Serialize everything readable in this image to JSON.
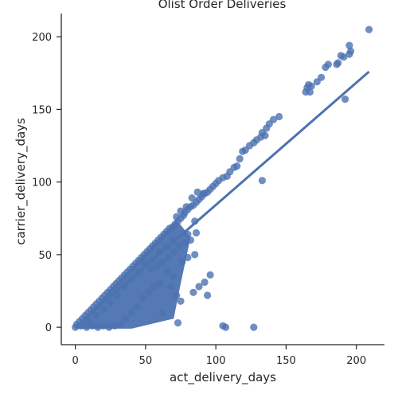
{
  "chart_data": {
    "type": "scatter",
    "title": "Olist Order Deliveries",
    "xlabel": "act_delivery_days",
    "ylabel": "carrier_delivery_days",
    "xlim": [
      -10,
      220
    ],
    "ylim": [
      -12,
      216
    ],
    "xticks": [
      0,
      50,
      100,
      150,
      200
    ],
    "yticks": [
      0,
      50,
      100,
      150,
      200
    ],
    "xtick_labels": [
      "0",
      "50",
      "100",
      "150",
      "200"
    ],
    "ytick_labels": [
      "0",
      "50",
      "100",
      "150",
      "200"
    ],
    "grid": false,
    "legend": "none",
    "colors": {
      "points": "#4c72b0",
      "line": "#4c72b0",
      "axes": "#262626"
    },
    "regression_line": {
      "x": [
        0,
        209
      ],
      "y": [
        0,
        176
      ]
    },
    "series": [
      {
        "points": [
          [
            209,
            205
          ],
          [
            195,
            194
          ],
          [
            196,
            190
          ],
          [
            195,
            188
          ],
          [
            191,
            186
          ],
          [
            189,
            187
          ],
          [
            187,
            182
          ],
          [
            186,
            181
          ],
          [
            180,
            181
          ],
          [
            178,
            179
          ],
          [
            175,
            172
          ],
          [
            172,
            169
          ],
          [
            168,
            166
          ],
          [
            166,
            167
          ],
          [
            165,
            165
          ],
          [
            164,
            162
          ],
          [
            167,
            162
          ],
          [
            192,
            157
          ],
          [
            145,
            145
          ],
          [
            141,
            143
          ],
          [
            138,
            140
          ],
          [
            136,
            137
          ],
          [
            133,
            134
          ],
          [
            135,
            132
          ],
          [
            132,
            131
          ],
          [
            129,
            129
          ],
          [
            127,
            127
          ],
          [
            124,
            125
          ],
          [
            121,
            122
          ],
          [
            119,
            121
          ],
          [
            133,
            101
          ],
          [
            115,
            111
          ],
          [
            117,
            116
          ],
          [
            113,
            110
          ],
          [
            110,
            107
          ],
          [
            108,
            104
          ],
          [
            105,
            103
          ],
          [
            102,
            101
          ],
          [
            100,
            99
          ],
          [
            98,
            97
          ],
          [
            96,
            95
          ],
          [
            94,
            93
          ],
          [
            92,
            92
          ],
          [
            90,
            90
          ],
          [
            88,
            88
          ],
          [
            86,
            86
          ],
          [
            84,
            84
          ],
          [
            82,
            83
          ],
          [
            80,
            81
          ],
          [
            78,
            79
          ],
          [
            77,
            77
          ],
          [
            75,
            75
          ],
          [
            73,
            73
          ],
          [
            71,
            71
          ],
          [
            69,
            69
          ],
          [
            67,
            68
          ],
          [
            65,
            66
          ],
          [
            63,
            64
          ],
          [
            61,
            62
          ],
          [
            59,
            60
          ],
          [
            57,
            58
          ],
          [
            55,
            56
          ],
          [
            53,
            54
          ],
          [
            51,
            52
          ],
          [
            49,
            50
          ],
          [
            47,
            48
          ],
          [
            45,
            46
          ],
          [
            43,
            44
          ],
          [
            41,
            42
          ],
          [
            39,
            40
          ],
          [
            37,
            38
          ],
          [
            35,
            36
          ],
          [
            33,
            34
          ],
          [
            31,
            32
          ],
          [
            29,
            30
          ],
          [
            27,
            28
          ],
          [
            25,
            26
          ],
          [
            23,
            24
          ],
          [
            21,
            22
          ],
          [
            19,
            20
          ],
          [
            17,
            18
          ],
          [
            15,
            16
          ],
          [
            13,
            14
          ],
          [
            11,
            12
          ],
          [
            9,
            10
          ],
          [
            7,
            8
          ],
          [
            5,
            6
          ],
          [
            3,
            4
          ],
          [
            1,
            2
          ],
          [
            91,
            92
          ],
          [
            87,
            93
          ],
          [
            83,
            89
          ],
          [
            79,
            83
          ],
          [
            75,
            80
          ],
          [
            72,
            76
          ],
          [
            85,
            73
          ],
          [
            80,
            64
          ],
          [
            86,
            65
          ],
          [
            82,
            60
          ],
          [
            78,
            58
          ],
          [
            74,
            56
          ],
          [
            70,
            52
          ],
          [
            66,
            48
          ],
          [
            62,
            45
          ],
          [
            58,
            42
          ],
          [
            54,
            40
          ],
          [
            60,
            30
          ],
          [
            65,
            38
          ],
          [
            70,
            35
          ],
          [
            68,
            28
          ],
          [
            72,
            22
          ],
          [
            75,
            18
          ],
          [
            62,
            10
          ],
          [
            73,
            3
          ],
          [
            84,
            24
          ],
          [
            76,
            45
          ],
          [
            80,
            48
          ],
          [
            85,
            50
          ],
          [
            70,
            60
          ],
          [
            65,
            55
          ],
          [
            60,
            52
          ],
          [
            55,
            47
          ],
          [
            50,
            44
          ],
          [
            45,
            38
          ],
          [
            40,
            33
          ],
          [
            35,
            28
          ],
          [
            30,
            22
          ],
          [
            25,
            17
          ],
          [
            20,
            12
          ],
          [
            15,
            8
          ],
          [
            10,
            4
          ],
          [
            48,
            20
          ],
          [
            52,
            24
          ],
          [
            56,
            28
          ],
          [
            44,
            14
          ],
          [
            40,
            10
          ],
          [
            36,
            6
          ],
          [
            32,
            2
          ],
          [
            28,
            1
          ],
          [
            24,
            0
          ],
          [
            20,
            1
          ],
          [
            16,
            0
          ],
          [
            12,
            1
          ],
          [
            8,
            0
          ],
          [
            4,
            1
          ],
          [
            0,
            0
          ],
          [
            105,
            1
          ],
          [
            107,
            0
          ],
          [
            127,
            0
          ],
          [
            96,
            36
          ],
          [
            92,
            31
          ],
          [
            88,
            28
          ],
          [
            94,
            22
          ]
        ]
      }
    ]
  }
}
